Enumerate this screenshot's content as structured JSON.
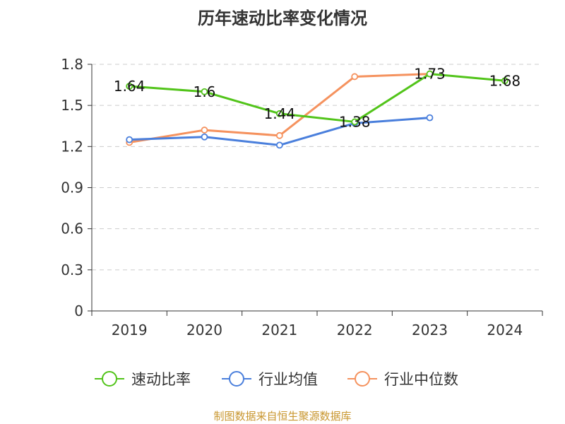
{
  "chart_data": {
    "type": "line",
    "title": "历年速动比率变化情况",
    "xlabel": "",
    "ylabel": "",
    "categories": [
      "2019",
      "2020",
      "2021",
      "2022",
      "2023",
      "2024"
    ],
    "ylim": [
      0,
      1.8
    ],
    "yticks": [
      "0",
      "0.3",
      "0.6",
      "0.9",
      "1.2",
      "1.5",
      "1.8"
    ],
    "grid": true,
    "legend_position": "bottom",
    "series": [
      {
        "name": "速动比率",
        "color": "#52c41a",
        "values": [
          1.64,
          1.6,
          1.44,
          1.38,
          1.73,
          1.68
        ],
        "labels": [
          "1.64",
          "1.6",
          "1.44",
          "1.38",
          "1.73",
          "1.68"
        ]
      },
      {
        "name": "行业均值",
        "color": "#4a7fdc",
        "values": [
          1.25,
          1.27,
          1.21,
          1.37,
          1.41,
          null
        ]
      },
      {
        "name": "行业中位数",
        "color": "#f5925e",
        "values": [
          1.23,
          1.32,
          1.28,
          1.71,
          1.73,
          null
        ]
      }
    ]
  },
  "source": "制图数据来自恒生聚源数据库"
}
